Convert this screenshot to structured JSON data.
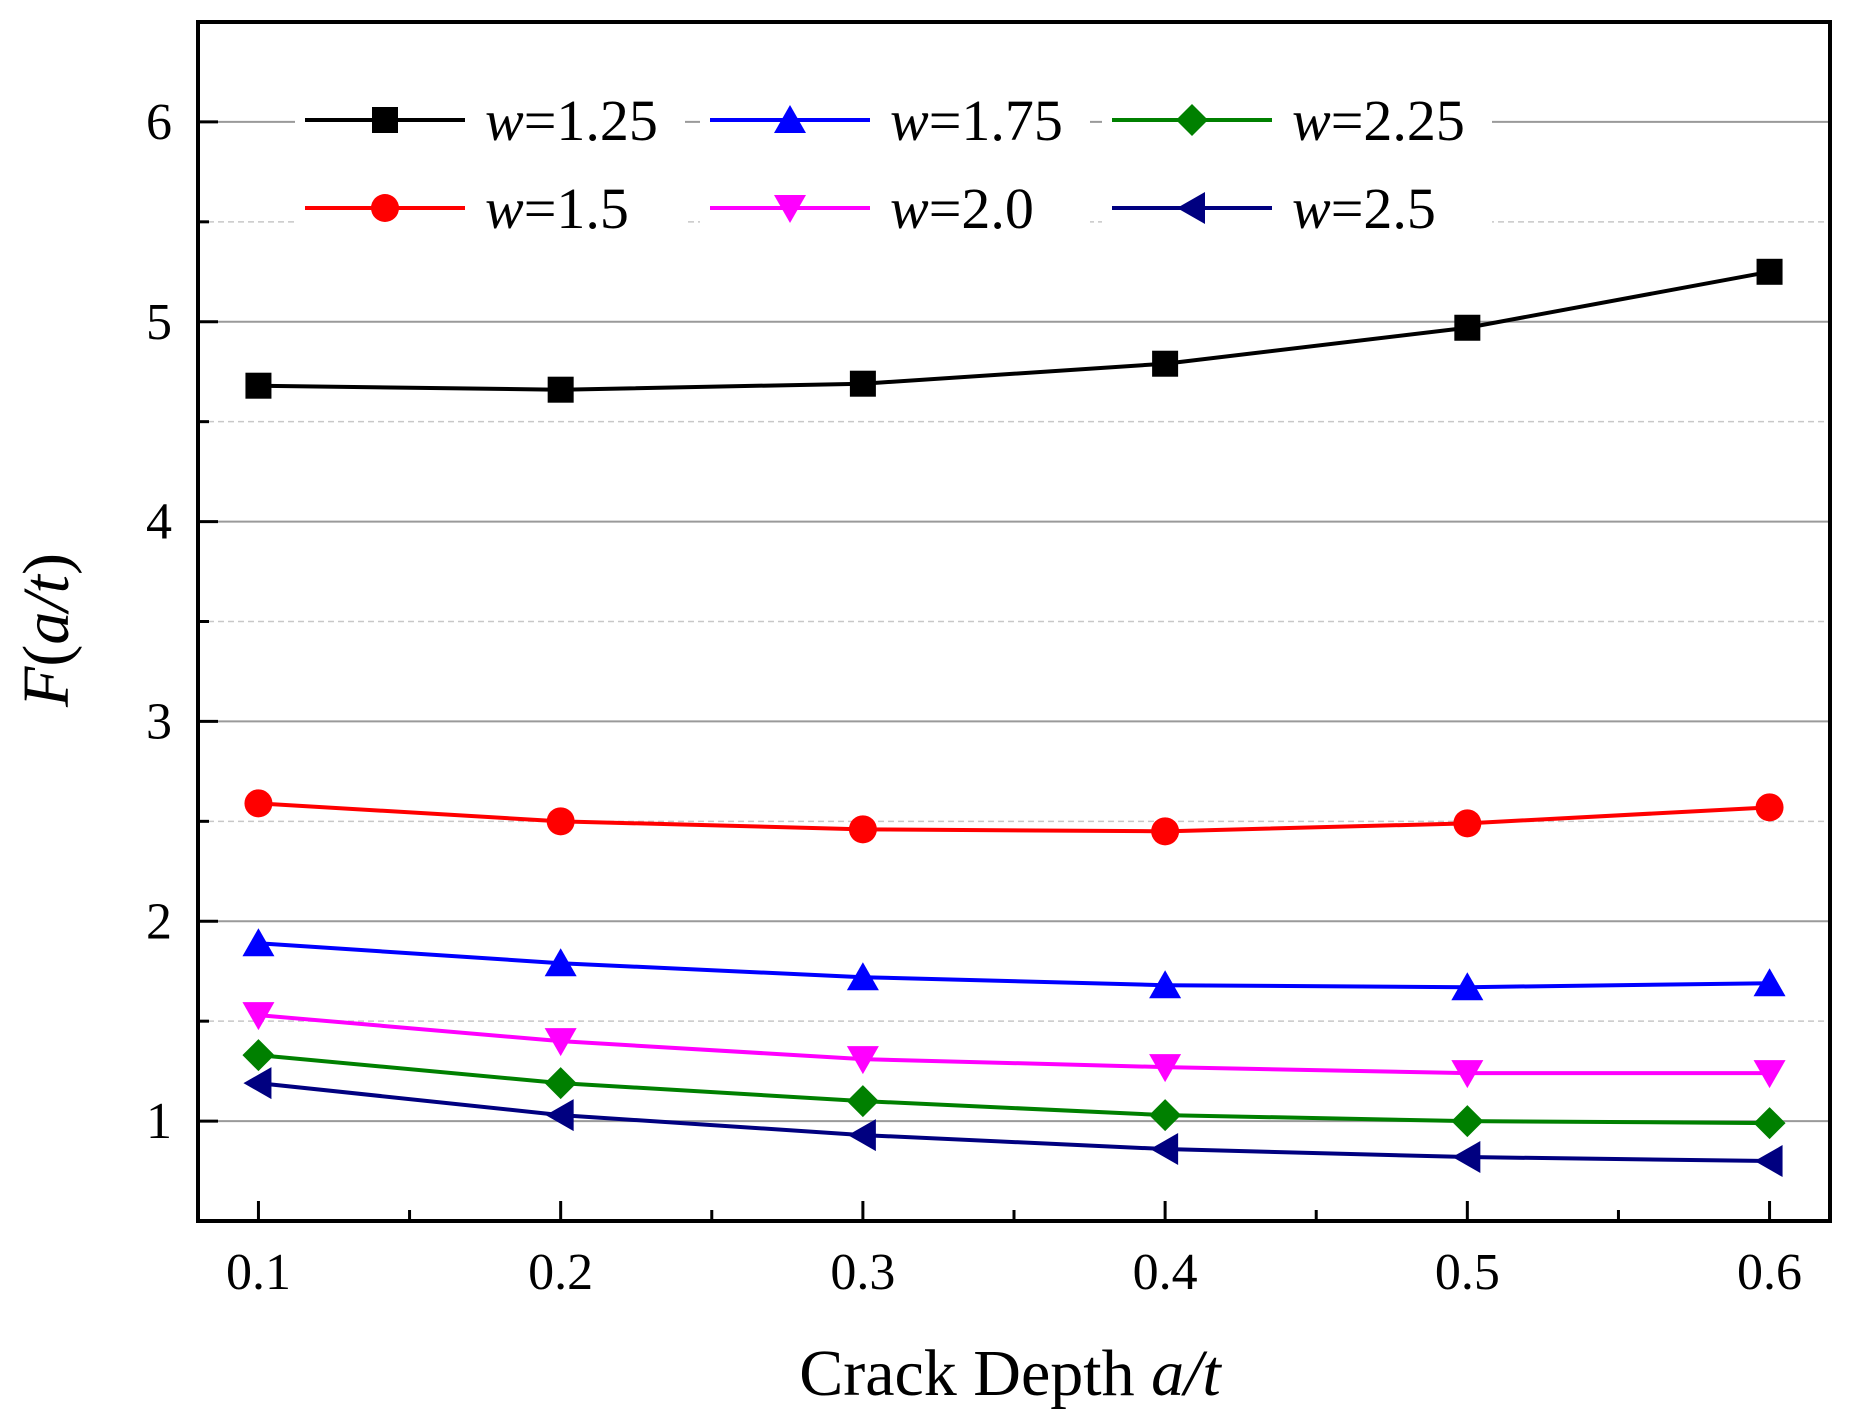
{
  "chart_data": {
    "type": "line",
    "title": "",
    "xlabel_prefix": "Crack Depth ",
    "xlabel_italic": "a/t",
    "ylabel_prefix": "F",
    "ylabel_paren_open": "(",
    "ylabel_italic": "a/t",
    "ylabel_paren_close": ")",
    "x": [
      0.1,
      0.2,
      0.3,
      0.4,
      0.5,
      0.6
    ],
    "x_tick_labels": [
      "0.1",
      "0.2",
      "0.3",
      "0.4",
      "0.5",
      "0.6"
    ],
    "y_ticks": [
      1,
      2,
      3,
      4,
      5,
      6
    ],
    "y_tick_labels": [
      "1",
      "2",
      "3",
      "4",
      "5",
      "6"
    ],
    "xlim": [
      0.08,
      0.62
    ],
    "ylim": [
      0.5,
      6.5
    ],
    "grid": {
      "major": [
        1,
        2,
        3,
        4,
        5,
        6
      ],
      "minor": [
        1.5,
        2.5,
        3.5,
        4.5,
        5.5
      ]
    },
    "legend_position": "top-left",
    "series": [
      {
        "name": "w=1.25",
        "name_var": "w",
        "name_value": "=1.25",
        "color": "#000000",
        "marker": "square",
        "values": [
          4.68,
          4.66,
          4.69,
          4.79,
          4.97,
          5.25
        ]
      },
      {
        "name": "w=1.5",
        "name_var": "w",
        "name_value": "=1.5",
        "color": "#ff0000",
        "marker": "circle",
        "values": [
          2.59,
          2.5,
          2.46,
          2.45,
          2.49,
          2.57
        ]
      },
      {
        "name": "w=1.75",
        "name_var": "w",
        "name_value": "=1.75",
        "color": "#0000ff",
        "marker": "triangle-up",
        "values": [
          1.89,
          1.79,
          1.72,
          1.68,
          1.67,
          1.69
        ]
      },
      {
        "name": "w=2.0",
        "name_var": "w",
        "name_value": "=2.0",
        "color": "#ff00ff",
        "marker": "triangle-down",
        "values": [
          1.53,
          1.4,
          1.31,
          1.27,
          1.24,
          1.24
        ]
      },
      {
        "name": "w=2.25",
        "name_var": "w",
        "name_value": "=2.25",
        "color": "#008000",
        "marker": "diamond",
        "values": [
          1.33,
          1.19,
          1.1,
          1.03,
          1.0,
          0.99
        ]
      },
      {
        "name": "w=2.5",
        "name_var": "w",
        "name_value": "=2.5",
        "color": "#000080",
        "marker": "triangle-left",
        "values": [
          1.19,
          1.03,
          0.93,
          0.86,
          0.82,
          0.8
        ]
      }
    ],
    "legend_order": [
      "w=1.25",
      "w=1.75",
      "w=2.25",
      "w=1.5",
      "w=2.0",
      "w=2.5"
    ]
  }
}
